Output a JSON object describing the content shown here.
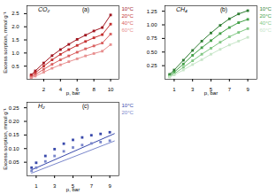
{
  "chart_data": [
    {
      "type": "line",
      "annotations": [
        "CO₂",
        "(a)"
      ],
      "xlabel": "p, bar",
      "ylabel": "Excess sorption, mmol g⁻¹",
      "x": [
        0.5,
        1.0,
        2.0,
        3.0,
        4.0,
        5.0,
        6.0,
        7.0,
        8.0,
        9.0,
        10.0
      ],
      "series": [
        {
          "name": "10°C",
          "color": "#A0141E",
          "marker": "square",
          "values": [
            0.17,
            0.32,
            0.62,
            0.9,
            1.13,
            1.33,
            1.52,
            1.68,
            1.84,
            1.97,
            2.45
          ]
        },
        {
          "name": "20°C",
          "color": "#C43030",
          "marker": "square",
          "values": [
            0.13,
            0.25,
            0.5,
            0.74,
            0.95,
            1.13,
            1.29,
            1.44,
            1.58,
            1.7,
            2.1
          ]
        },
        {
          "name": "40°C",
          "color": "#D96060",
          "marker": "square",
          "values": [
            0.08,
            0.18,
            0.38,
            0.57,
            0.74,
            0.89,
            1.03,
            1.16,
            1.27,
            1.38,
            1.72
          ]
        },
        {
          "name": "60°C",
          "color": "#E89090",
          "marker": "square",
          "values": [
            0.05,
            0.12,
            0.27,
            0.42,
            0.55,
            0.67,
            0.78,
            0.89,
            0.98,
            1.07,
            1.32
          ]
        }
      ],
      "xlim": [
        0,
        11
      ],
      "ylim": [
        0,
        2.8
      ],
      "xticks": [
        2,
        4,
        6,
        8,
        10
      ],
      "yticks": [
        0.5,
        {
          "value": 1.0,
          "label": "1.0"
        },
        1.5,
        {
          "value": 2.0,
          "label": "2.0"
        },
        2.5
      ],
      "legend": "right"
    },
    {
      "type": "line",
      "annotations": [
        "CH₄",
        "(b)"
      ],
      "xlabel": "p, bar",
      "x": [
        0.5,
        1.0,
        2.0,
        3.0,
        4.0,
        5.0,
        6.0,
        7.0,
        8.0,
        9.0
      ],
      "series": [
        {
          "name": "10°C",
          "color": "#2E7D32",
          "marker": "square",
          "values": [
            0.09,
            0.17,
            0.35,
            0.53,
            0.7,
            0.85,
            0.99,
            1.11,
            1.2,
            1.26
          ]
        },
        {
          "name": "20°C",
          "color": "#43A047",
          "marker": "square",
          "values": [
            0.07,
            0.13,
            0.28,
            0.44,
            0.58,
            0.71,
            0.84,
            0.95,
            1.04,
            1.1
          ]
        },
        {
          "name": "40°C",
          "color": "#81C784",
          "marker": "square",
          "values": [
            0.05,
            0.1,
            0.22,
            0.34,
            0.46,
            0.57,
            0.68,
            0.78,
            0.86,
            0.93
          ]
        },
        {
          "name": "60°C",
          "color": "#C8E6C9",
          "marker": "square",
          "values": [
            0.04,
            0.08,
            0.17,
            0.27,
            0.36,
            0.46,
            0.55,
            0.63,
            0.7,
            0.77
          ]
        }
      ],
      "xlim": [
        0,
        10
      ],
      "ylim": [
        0,
        1.35
      ],
      "xticks": [
        1,
        3,
        5,
        7,
        9
      ],
      "yticks": [
        0.25,
        {
          "value": 0.5,
          "label": "0.50"
        },
        0.75,
        {
          "value": 1.0,
          "label": "1.00"
        },
        1.25
      ],
      "legend": "right"
    },
    {
      "type": "scatter",
      "annotations": [
        "H₂",
        "(c)"
      ],
      "xlabel": "p, bar",
      "ylabel": "Excess sorption, mmol g⁻¹",
      "series": [
        {
          "type": "line",
          "color": "#3949AB",
          "x": [
            0.5,
            9.5
          ],
          "values": [
            0.022,
            0.155
          ]
        },
        {
          "type": "line",
          "color": "#7986CB",
          "x": [
            0.5,
            9.5
          ],
          "values": [
            0.01,
            0.128
          ]
        },
        {
          "name": "10°C",
          "type": "scatter",
          "color": "#3949AB",
          "marker": "square",
          "x": [
            0.5,
            1.0,
            2.0,
            3.0,
            4.0,
            5.0,
            6.0,
            7.0,
            8.0,
            9.0
          ],
          "values": [
            0.03,
            0.048,
            0.073,
            0.098,
            0.118,
            0.132,
            0.141,
            0.149,
            0.154,
            0.16
          ]
        },
        {
          "name": "20°C",
          "type": "scatter",
          "color": "#7986CB",
          "marker": "square",
          "x": [
            0.5,
            1.0,
            2.0,
            3.0,
            4.0,
            5.0,
            6.0,
            7.0,
            8.0,
            9.0
          ],
          "values": [
            0.018,
            0.03,
            0.053,
            0.073,
            0.09,
            0.104,
            0.113,
            0.119,
            0.124,
            0.129
          ]
        }
      ],
      "xlim": [
        0,
        10
      ],
      "ylim": [
        0,
        0.27
      ],
      "xticks": [
        1,
        3,
        5,
        7,
        9
      ],
      "yticks": [
        {
          "value": 0.05,
          "label": "0.05"
        },
        {
          "value": 0.1,
          "label": "0.10"
        },
        0.15,
        {
          "value": 0.2,
          "label": "0.20"
        },
        0.25
      ],
      "legend": "right"
    }
  ]
}
